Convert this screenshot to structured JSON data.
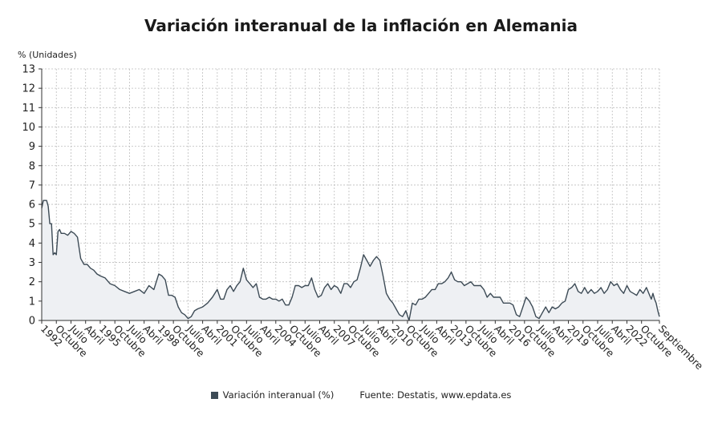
{
  "chart_data": {
    "type": "area",
    "title": "Variación interanual de la inflación en Alemania",
    "ylabel": "% (Unidades)",
    "ylim": [
      0,
      13
    ],
    "yticks": [
      0,
      1,
      2,
      3,
      4,
      5,
      6,
      7,
      8,
      9,
      10,
      11,
      12,
      13
    ],
    "xlim": [
      "1992-01",
      "2023-09"
    ],
    "x_ticks": [
      {
        "date": "1992-01",
        "label": "1992"
      },
      {
        "date": "1992-10",
        "label": "Octubre"
      },
      {
        "date": "1993-07",
        "label": "Julio"
      },
      {
        "date": "1994-04",
        "label": "Abril"
      },
      {
        "date": "1995-01",
        "label": "1995"
      },
      {
        "date": "1995-10",
        "label": "Octubre"
      },
      {
        "date": "1996-07",
        "label": "Julio"
      },
      {
        "date": "1997-04",
        "label": "Abril"
      },
      {
        "date": "1998-01",
        "label": "1998"
      },
      {
        "date": "1998-10",
        "label": "Octubre"
      },
      {
        "date": "1999-07",
        "label": "Julio"
      },
      {
        "date": "2000-04",
        "label": "Abril"
      },
      {
        "date": "2001-01",
        "label": "2001"
      },
      {
        "date": "2001-10",
        "label": "Octubre"
      },
      {
        "date": "2002-07",
        "label": "Julio"
      },
      {
        "date": "2003-04",
        "label": "Abril"
      },
      {
        "date": "2004-01",
        "label": "2004"
      },
      {
        "date": "2004-10",
        "label": "Octubre"
      },
      {
        "date": "2005-07",
        "label": "Julio"
      },
      {
        "date": "2006-04",
        "label": "Abril"
      },
      {
        "date": "2007-01",
        "label": "2007"
      },
      {
        "date": "2007-10",
        "label": "Octubre"
      },
      {
        "date": "2008-07",
        "label": "Julio"
      },
      {
        "date": "2009-04",
        "label": "Abril"
      },
      {
        "date": "2010-01",
        "label": "2010"
      },
      {
        "date": "2010-10",
        "label": "Octubre"
      },
      {
        "date": "2011-07",
        "label": "Julio"
      },
      {
        "date": "2012-04",
        "label": "Abril"
      },
      {
        "date": "2013-01",
        "label": "2013"
      },
      {
        "date": "2013-10",
        "label": "Octubre"
      },
      {
        "date": "2014-07",
        "label": "Julio"
      },
      {
        "date": "2015-04",
        "label": "Abril"
      },
      {
        "date": "2016-01",
        "label": "2016"
      },
      {
        "date": "2016-10",
        "label": "Octubre"
      },
      {
        "date": "2017-07",
        "label": "Julio"
      },
      {
        "date": "2018-04",
        "label": "Abril"
      },
      {
        "date": "2019-01",
        "label": "2019"
      },
      {
        "date": "2019-10",
        "label": "Octubre"
      },
      {
        "date": "2020-07",
        "label": "Julio"
      },
      {
        "date": "2021-04",
        "label": "Abril"
      },
      {
        "date": "2022-01",
        "label": "2022"
      },
      {
        "date": "2022-10",
        "label": "Octubre"
      },
      {
        "date": "2023-09",
        "label": "Septiembre"
      }
    ],
    "series": [
      {
        "name": "Variación interanual (%)",
        "color": "#3c4a55",
        "fill": "#eef0f3",
        "points": [
          [
            "1992-01",
            5.8
          ],
          [
            "1992-02",
            6.2
          ],
          [
            "1992-03",
            6.2
          ],
          [
            "1992-04",
            6.2
          ],
          [
            "1992-05",
            5.9
          ],
          [
            "1992-06",
            5.0
          ],
          [
            "1992-07",
            5.0
          ],
          [
            "1992-08",
            3.4
          ],
          [
            "1992-09",
            3.5
          ],
          [
            "1992-10",
            3.4
          ],
          [
            "1992-11",
            4.6
          ],
          [
            "1992-12",
            4.7
          ],
          [
            "1993-01",
            4.5
          ],
          [
            "1993-03",
            4.5
          ],
          [
            "1993-05",
            4.4
          ],
          [
            "1993-07",
            4.6
          ],
          [
            "1993-09",
            4.5
          ],
          [
            "1993-11",
            4.3
          ],
          [
            "1994-01",
            3.2
          ],
          [
            "1994-03",
            2.9
          ],
          [
            "1994-05",
            2.9
          ],
          [
            "1994-07",
            2.7
          ],
          [
            "1994-09",
            2.6
          ],
          [
            "1994-11",
            2.4
          ],
          [
            "1995-01",
            2.3
          ],
          [
            "1995-04",
            2.2
          ],
          [
            "1995-07",
            1.9
          ],
          [
            "1995-10",
            1.8
          ],
          [
            "1996-01",
            1.6
          ],
          [
            "1996-04",
            1.5
          ],
          [
            "1996-07",
            1.4
          ],
          [
            "1996-10",
            1.5
          ],
          [
            "1997-01",
            1.6
          ],
          [
            "1997-04",
            1.4
          ],
          [
            "1997-07",
            1.8
          ],
          [
            "1997-10",
            1.6
          ],
          [
            "1998-01",
            2.4
          ],
          [
            "1998-03",
            2.3
          ],
          [
            "1998-05",
            2.1
          ],
          [
            "1998-07",
            1.3
          ],
          [
            "1998-09",
            1.3
          ],
          [
            "1998-11",
            1.2
          ],
          [
            "1999-01",
            0.7
          ],
          [
            "1999-03",
            0.4
          ],
          [
            "1999-05",
            0.3
          ],
          [
            "1999-07",
            0.1
          ],
          [
            "1999-09",
            0.2
          ],
          [
            "1999-11",
            0.5
          ],
          [
            "2000-01",
            0.6
          ],
          [
            "2000-04",
            0.7
          ],
          [
            "2000-07",
            0.9
          ],
          [
            "2000-10",
            1.2
          ],
          [
            "2001-01",
            1.6
          ],
          [
            "2001-03",
            1.1
          ],
          [
            "2001-05",
            1.1
          ],
          [
            "2001-07",
            1.6
          ],
          [
            "2001-09",
            1.8
          ],
          [
            "2001-11",
            1.5
          ],
          [
            "2002-01",
            1.8
          ],
          [
            "2002-03",
            2.0
          ],
          [
            "2002-05",
            2.7
          ],
          [
            "2002-07",
            2.1
          ],
          [
            "2002-09",
            1.9
          ],
          [
            "2002-11",
            1.7
          ],
          [
            "2003-01",
            1.9
          ],
          [
            "2003-03",
            1.2
          ],
          [
            "2003-05",
            1.1
          ],
          [
            "2003-07",
            1.1
          ],
          [
            "2003-09",
            1.2
          ],
          [
            "2003-11",
            1.1
          ],
          [
            "2004-01",
            1.1
          ],
          [
            "2004-03",
            1.0
          ],
          [
            "2004-05",
            1.1
          ],
          [
            "2004-07",
            0.8
          ],
          [
            "2004-09",
            0.8
          ],
          [
            "2004-11",
            1.2
          ],
          [
            "2005-01",
            1.8
          ],
          [
            "2005-03",
            1.8
          ],
          [
            "2005-05",
            1.7
          ],
          [
            "2005-07",
            1.8
          ],
          [
            "2005-09",
            1.8
          ],
          [
            "2005-11",
            2.2
          ],
          [
            "2006-01",
            1.6
          ],
          [
            "2006-03",
            1.2
          ],
          [
            "2006-05",
            1.3
          ],
          [
            "2006-07",
            1.7
          ],
          [
            "2006-09",
            1.9
          ],
          [
            "2006-11",
            1.6
          ],
          [
            "2007-01",
            1.8
          ],
          [
            "2007-03",
            1.7
          ],
          [
            "2007-05",
            1.4
          ],
          [
            "2007-07",
            1.9
          ],
          [
            "2007-09",
            1.9
          ],
          [
            "2007-11",
            1.7
          ],
          [
            "2008-01",
            2.0
          ],
          [
            "2008-03",
            2.1
          ],
          [
            "2008-05",
            2.7
          ],
          [
            "2008-07",
            3.4
          ],
          [
            "2008-09",
            3.1
          ],
          [
            "2008-11",
            2.8
          ],
          [
            "2009-01",
            3.1
          ],
          [
            "2009-03",
            3.3
          ],
          [
            "2009-05",
            3.1
          ],
          [
            "2009-07",
            2.3
          ],
          [
            "2009-09",
            1.4
          ],
          [
            "2009-11",
            1.1
          ],
          [
            "2010-01",
            0.9
          ],
          [
            "2010-03",
            0.6
          ],
          [
            "2010-05",
            0.3
          ],
          [
            "2010-07",
            0.2
          ],
          [
            "2010-09",
            0.5
          ],
          [
            "2010-11",
            0.0
          ],
          [
            "2011-01",
            0.9
          ],
          [
            "2011-03",
            0.8
          ],
          [
            "2011-05",
            1.1
          ],
          [
            "2011-07",
            1.1
          ],
          [
            "2011-09",
            1.2
          ],
          [
            "2011-11",
            1.4
          ],
          [
            "2012-01",
            1.6
          ],
          [
            "2012-03",
            1.6
          ],
          [
            "2012-05",
            1.9
          ],
          [
            "2012-07",
            1.9
          ],
          [
            "2012-09",
            2.0
          ],
          [
            "2012-11",
            2.2
          ],
          [
            "2013-01",
            2.5
          ],
          [
            "2013-03",
            2.1
          ],
          [
            "2013-05",
            2.0
          ],
          [
            "2013-07",
            2.0
          ],
          [
            "2013-09",
            1.8
          ],
          [
            "2013-11",
            1.9
          ],
          [
            "2014-01",
            2.0
          ],
          [
            "2014-03",
            1.8
          ],
          [
            "2014-05",
            1.8
          ],
          [
            "2014-07",
            1.8
          ],
          [
            "2014-09",
            1.6
          ],
          [
            "2014-11",
            1.2
          ],
          [
            "2015-01",
            1.4
          ],
          [
            "2015-03",
            1.2
          ],
          [
            "2015-05",
            1.2
          ],
          [
            "2015-07",
            1.2
          ],
          [
            "2015-09",
            0.9
          ],
          [
            "2015-11",
            0.9
          ],
          [
            "2016-01",
            0.9
          ],
          [
            "2016-03",
            0.8
          ],
          [
            "2016-05",
            0.3
          ],
          [
            "2016-07",
            0.2
          ],
          [
            "2016-09",
            0.7
          ],
          [
            "2016-11",
            1.2
          ],
          [
            "2017-01",
            1.0
          ],
          [
            "2017-03",
            0.7
          ],
          [
            "2017-05",
            0.2
          ],
          [
            "2017-07",
            0.1
          ],
          [
            "2017-09",
            0.4
          ],
          [
            "2017-11",
            0.7
          ],
          [
            "2018-01",
            0.4
          ],
          [
            "2018-03",
            0.7
          ],
          [
            "2018-05",
            0.6
          ],
          [
            "2018-07",
            0.7
          ],
          [
            "2018-09",
            0.9
          ],
          [
            "2018-11",
            1.0
          ],
          [
            "2019-01",
            1.6
          ],
          [
            "2019-03",
            1.7
          ],
          [
            "2019-05",
            1.9
          ],
          [
            "2019-07",
            1.5
          ],
          [
            "2019-09",
            1.4
          ],
          [
            "2019-11",
            1.7
          ],
          [
            "2020-01",
            1.4
          ],
          [
            "2020-03",
            1.6
          ],
          [
            "2020-05",
            1.4
          ],
          [
            "2020-07",
            1.5
          ],
          [
            "2020-09",
            1.7
          ],
          [
            "2020-11",
            1.4
          ],
          [
            "2021-01",
            1.6
          ],
          [
            "2021-03",
            2.0
          ],
          [
            "2021-05",
            1.8
          ],
          [
            "2021-07",
            1.9
          ],
          [
            "2021-09",
            1.6
          ],
          [
            "2021-11",
            1.4
          ],
          [
            "2022-01",
            1.8
          ],
          [
            "2022-03",
            1.5
          ],
          [
            "2022-05",
            1.4
          ],
          [
            "2022-07",
            1.3
          ],
          [
            "2022-09",
            1.6
          ],
          [
            "2022-11",
            1.4
          ],
          [
            "2023-01",
            1.7
          ],
          [
            "2023-03",
            1.3
          ],
          [
            "2023-04",
            1.1
          ],
          [
            "2023-05",
            1.4
          ],
          [
            "2023-06",
            1.1
          ],
          [
            "2023-07",
            0.9
          ],
          [
            "2023-08",
            0.5
          ],
          [
            "2023-09",
            0.2
          ]
        ]
      }
    ]
  },
  "legend": {
    "series_label": "Variación interanual (%)",
    "source": "Fuente: Destatis, www.epdata.es"
  }
}
